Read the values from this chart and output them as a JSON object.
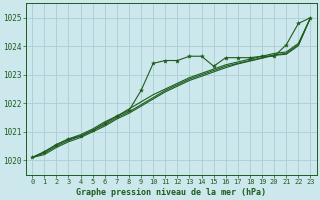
{
  "xlabel": "Graphe pression niveau de la mer (hPa)",
  "xlim": [
    -0.5,
    23.5
  ],
  "ylim": [
    1019.5,
    1025.5
  ],
  "yticks": [
    1020,
    1021,
    1022,
    1023,
    1024,
    1025
  ],
  "xticks": [
    0,
    1,
    2,
    3,
    4,
    5,
    6,
    7,
    8,
    9,
    10,
    11,
    12,
    13,
    14,
    15,
    16,
    17,
    18,
    19,
    20,
    21,
    22,
    23
  ],
  "bg_color": "#cce8ec",
  "grid_color": "#aacdd4",
  "line_color": "#1e5c1e",
  "line1_marked": [
    1020.1,
    1020.3,
    1020.55,
    1020.75,
    1020.85,
    1021.05,
    1021.3,
    1021.55,
    1021.75,
    1022.45,
    1023.4,
    1023.5,
    1023.5,
    1023.65,
    1023.65,
    1023.3,
    1023.6,
    1023.6,
    1023.6,
    1023.65,
    1023.65,
    1024.05,
    1024.8,
    1025.0
  ],
  "line2_upper": [
    1020.1,
    1020.3,
    1020.55,
    1020.75,
    1020.9,
    1021.1,
    1021.35,
    1021.55,
    1021.8,
    1022.05,
    1022.3,
    1022.5,
    1022.7,
    1022.9,
    1023.05,
    1023.2,
    1023.35,
    1023.45,
    1023.55,
    1023.65,
    1023.75,
    1023.8,
    1024.1,
    1025.0
  ],
  "line3_mid": [
    1020.1,
    1020.25,
    1020.5,
    1020.7,
    1020.85,
    1021.05,
    1021.25,
    1021.5,
    1021.7,
    1021.95,
    1022.2,
    1022.45,
    1022.65,
    1022.85,
    1023.0,
    1023.15,
    1023.3,
    1023.4,
    1023.5,
    1023.6,
    1023.7,
    1023.75,
    1024.05,
    1025.0
  ],
  "line4_low": [
    1020.1,
    1020.2,
    1020.45,
    1020.65,
    1020.8,
    1021.0,
    1021.2,
    1021.45,
    1021.65,
    1021.9,
    1022.15,
    1022.4,
    1022.6,
    1022.8,
    1022.95,
    1023.1,
    1023.25,
    1023.38,
    1023.48,
    1023.58,
    1023.68,
    1023.72,
    1024.02,
    1025.0
  ]
}
